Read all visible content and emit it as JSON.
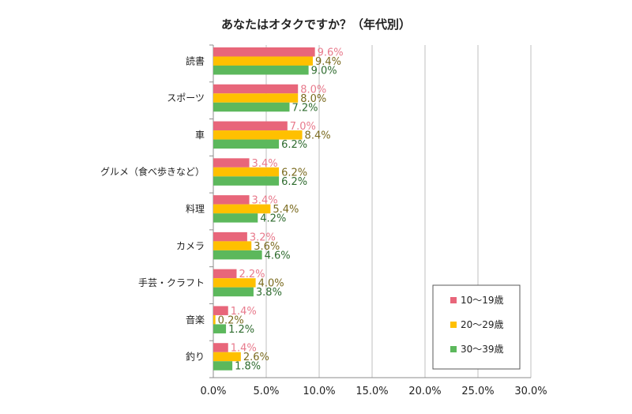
{
  "chart_data": {
    "type": "bar",
    "orientation": "horizontal",
    "title": "あなたはオタクですか？（年代別）",
    "categories": [
      "読書",
      "スポーツ",
      "車",
      "グルメ（食べ歩きなど）",
      "料理",
      "カメラ",
      "手芸・クラフト",
      "音楽",
      "釣り"
    ],
    "series": [
      {
        "name": "10～19歳",
        "color": "#e8667a",
        "label_color": "#e87a8c",
        "values": [
          9.6,
          8.0,
          7.0,
          3.4,
          3.4,
          3.2,
          2.2,
          1.4,
          1.4
        ],
        "labels": [
          "9.6%",
          "8.0%",
          "7.0%",
          "3.4%",
          "3.4%",
          "3.2%",
          "2.2%",
          "1.4%",
          "1.4%"
        ]
      },
      {
        "name": "20～29歳",
        "color": "#ffc000",
        "label_color": "#7a6a1e",
        "values": [
          9.4,
          8.0,
          8.4,
          6.2,
          5.4,
          3.6,
          4.0,
          0.2,
          2.6
        ],
        "labels": [
          "9.4%",
          "8.0%",
          "8.4%",
          "6.2%",
          "5.4%",
          "3.6%",
          "4.0%",
          "0.2%",
          "2.6%"
        ]
      },
      {
        "name": "30～39歳",
        "color": "#5cb85c",
        "label_color": "#2e6b2e",
        "values": [
          9.0,
          7.2,
          6.2,
          6.2,
          4.2,
          4.6,
          3.8,
          1.2,
          1.8
        ],
        "labels": [
          "9.0%",
          "7.2%",
          "6.2%",
          "6.2%",
          "4.2%",
          "4.6%",
          "3.8%",
          "1.2%",
          "1.8%"
        ]
      }
    ],
    "xlim": [
      0,
      30
    ],
    "ticks": [
      0,
      5,
      10,
      15,
      20,
      25,
      30
    ],
    "tick_labels": [
      "0.0%",
      "5.0%",
      "10.0%",
      "15.0%",
      "20.0%",
      "25.0%",
      "30.0%"
    ],
    "grid": true,
    "legend_position": "bottom-right"
  }
}
